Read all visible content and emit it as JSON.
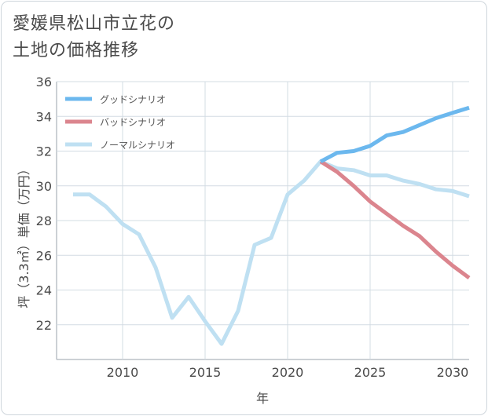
{
  "title_lines": [
    "愛媛県松山市立花の",
    "土地の価格推移"
  ],
  "chart_data": {
    "type": "line",
    "xlabel": "年",
    "ylabel": "坪（3.3㎡）単価（万円）",
    "xlim": [
      2006,
      2031
    ],
    "ylim": [
      20,
      36
    ],
    "x_ticks": [
      2010,
      2015,
      2020,
      2025,
      2030
    ],
    "y_ticks": [
      22,
      24,
      26,
      28,
      30,
      32,
      34,
      36
    ],
    "grid": true,
    "legend_position": "top-left",
    "series": [
      {
        "name": "グッドシナリオ",
        "color": "#6cb8ee",
        "x": [
          2022,
          2023,
          2024,
          2025,
          2026,
          2027,
          2028,
          2029,
          2030,
          2031
        ],
        "y": [
          31.4,
          31.9,
          32.0,
          32.3,
          32.9,
          33.1,
          33.5,
          33.9,
          34.2,
          34.5
        ]
      },
      {
        "name": "バッドシナリオ",
        "color": "#db858e",
        "x": [
          2022,
          2023,
          2024,
          2025,
          2026,
          2027,
          2028,
          2029,
          2030,
          2031
        ],
        "y": [
          31.4,
          30.8,
          30.0,
          29.1,
          28.4,
          27.7,
          27.1,
          26.2,
          25.4,
          24.7
        ]
      },
      {
        "name": "ノーマルシナリオ",
        "color": "#bfe0f2",
        "x": [
          2007,
          2008,
          2009,
          2010,
          2011,
          2012,
          2013,
          2014,
          2015,
          2016,
          2017,
          2018,
          2019,
          2020,
          2021,
          2022,
          2023,
          2024,
          2025,
          2026,
          2027,
          2028,
          2029,
          2030,
          2031
        ],
        "y": [
          29.5,
          29.5,
          28.8,
          27.8,
          27.2,
          25.3,
          22.4,
          23.6,
          22.2,
          20.9,
          22.8,
          26.6,
          27.0,
          29.5,
          30.3,
          31.4,
          31.0,
          30.9,
          30.6,
          30.6,
          30.3,
          30.1,
          29.8,
          29.7,
          29.4
        ]
      }
    ]
  }
}
